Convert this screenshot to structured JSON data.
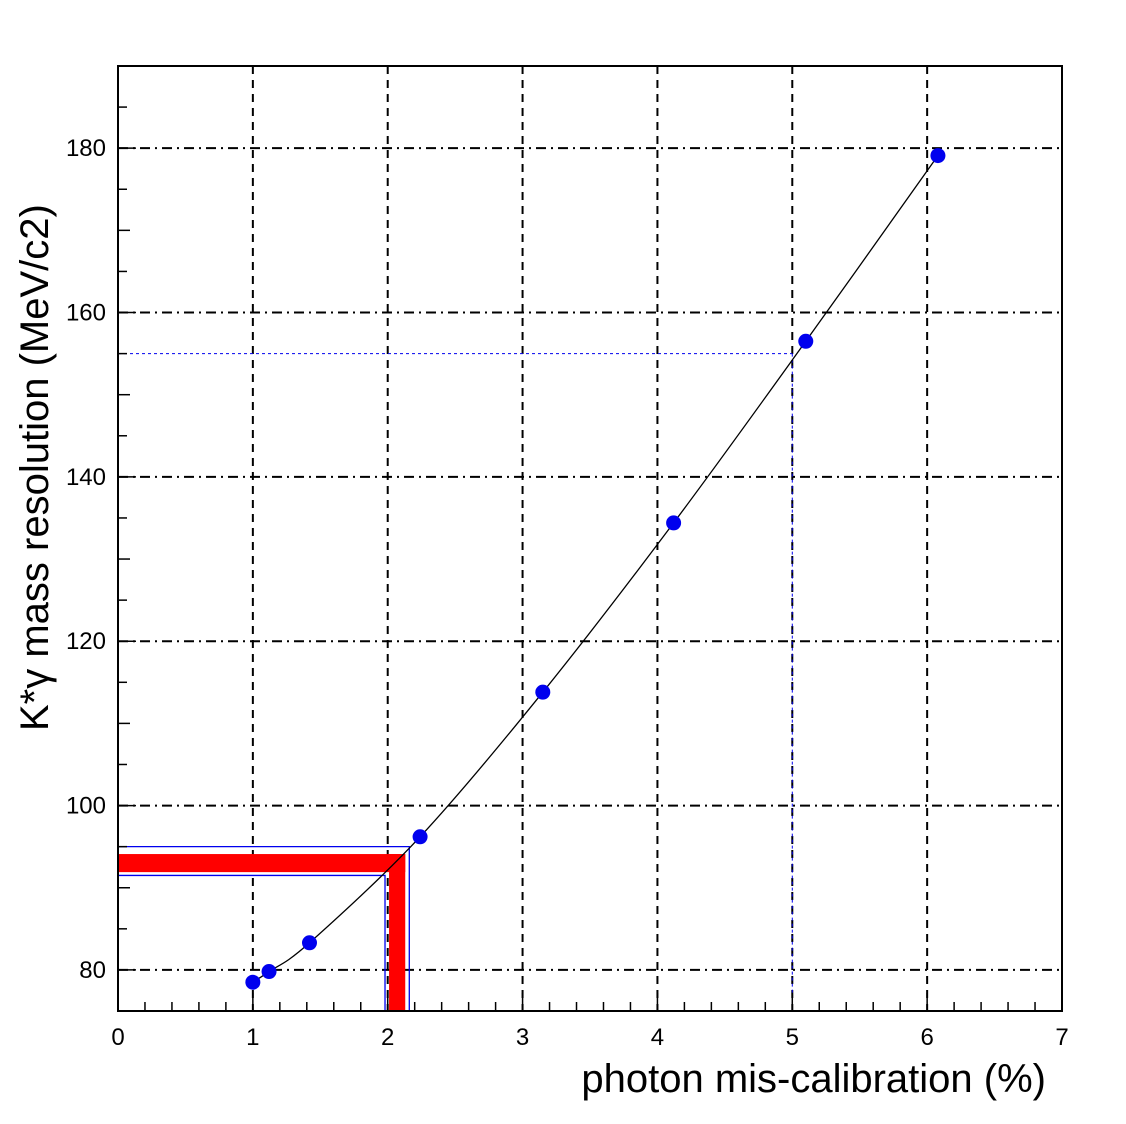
{
  "chart_data": {
    "type": "scatter",
    "title": "",
    "xlabel": "photon mis-calibration (%)",
    "ylabel": "K*γ mass resolution (MeV/c2)",
    "xlim": [
      0,
      7
    ],
    "ylim": [
      75,
      190
    ],
    "x_ticks": [
      0,
      1,
      2,
      3,
      4,
      5,
      6,
      7
    ],
    "x_tick_labels": [
      "0",
      "1",
      "2",
      "3",
      "4",
      "5",
      "6",
      "7"
    ],
    "y_ticks": [
      80,
      100,
      120,
      140,
      160,
      180
    ],
    "y_tick_labels": [
      "80",
      "100",
      "120",
      "140",
      "160",
      "180"
    ],
    "grid": true,
    "series": [
      {
        "color": "#0000ee",
        "marker": "circle",
        "x": [
          1.0,
          1.12,
          1.42,
          2.24,
          3.15,
          4.12,
          5.1,
          6.08
        ],
        "y": [
          78.5,
          79.8,
          83.3,
          96.2,
          113.8,
          134.4,
          156.5,
          179.1
        ]
      }
    ],
    "fit_curve": {
      "color": "#000000",
      "style": "smooth line through points"
    },
    "annotations": {
      "red_band": {
        "x_center": 2.07,
        "x_half_width": 0.06,
        "y_center": 93.0,
        "y_half_width": 1.1,
        "color": "#ff0000"
      },
      "blue_box": {
        "x_low": 1.98,
        "x_high": 2.16,
        "y_low": 91.5,
        "y_high": 95.0,
        "color": "#0000ee"
      },
      "blue_dashed_guide": {
        "x": 5.0,
        "y": 155.0,
        "color": "#0000ee"
      }
    }
  }
}
